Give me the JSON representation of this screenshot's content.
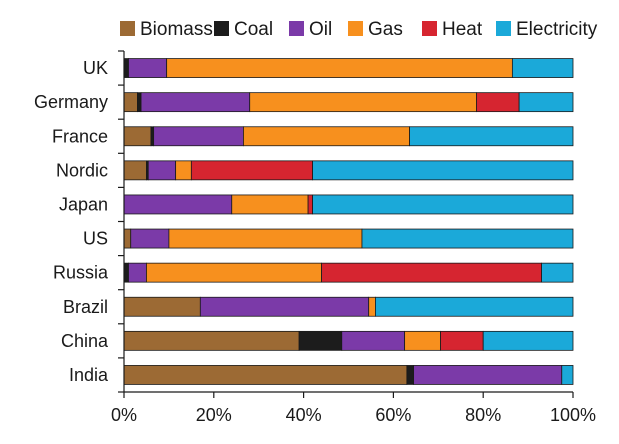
{
  "chart_data": {
    "type": "bar",
    "orientation": "horizontal",
    "stacked": true,
    "categories": [
      "UK",
      "Germany",
      "France",
      "Nordic",
      "Japan",
      "US",
      "Russia",
      "Brazil",
      "China",
      "India"
    ],
    "series": [
      {
        "name": "Biomass",
        "color": "#9c6a34",
        "values": [
          0,
          3,
          6,
          5,
          0,
          1.5,
          0,
          17,
          39,
          63
        ]
      },
      {
        "name": "Coal",
        "color": "#1c1c1c",
        "values": [
          1,
          0.8,
          0.6,
          0.4,
          0,
          0,
          1,
          0,
          9.5,
          1.5
        ]
      },
      {
        "name": "Oil",
        "color": "#7b3aa8",
        "values": [
          8.5,
          24.2,
          20,
          6.1,
          24,
          8.5,
          4,
          37.5,
          14,
          33
        ]
      },
      {
        "name": "Gas",
        "color": "#f7901e",
        "values": [
          77,
          50.5,
          37,
          3.5,
          17,
          43,
          39,
          1.5,
          8,
          0
        ]
      },
      {
        "name": "Heat",
        "color": "#d62530",
        "values": [
          0,
          9.5,
          0,
          27,
          1,
          0,
          49,
          0,
          9.5,
          0
        ]
      },
      {
        "name": "Electricity",
        "color": "#1ba9d9",
        "values": [
          13.5,
          12,
          36.4,
          58,
          58,
          47,
          7,
          44,
          20,
          2.5
        ]
      }
    ],
    "xlim": [
      0,
      100
    ],
    "xticks": [
      "0%",
      "20%",
      "40%",
      "60%",
      "80%",
      "100%"
    ],
    "xlabel": "",
    "ylabel": "",
    "title": "",
    "legend": {
      "position": "top"
    },
    "grid": false
  }
}
